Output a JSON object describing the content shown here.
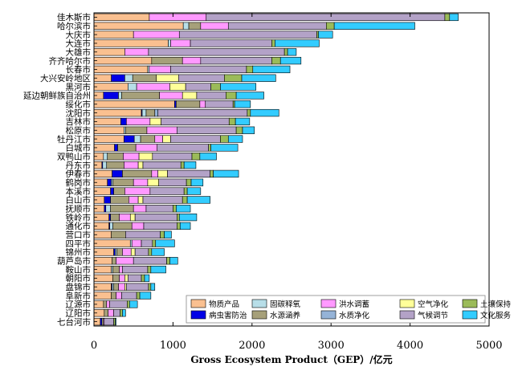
{
  "chart_data": {
    "type": "bar",
    "orientation": "horizontal",
    "stacked": true,
    "xlabel": "Gross Ecosystem Product（GEP）/亿元",
    "ylabel": "",
    "xlim": [
      0,
      5000
    ],
    "xticks": [
      0,
      1000,
      2000,
      3000,
      4000,
      5000
    ],
    "grid": false,
    "legend_position": "bottom-right",
    "categories": [
      "佳木斯市",
      "哈尔滨市",
      "大庆市",
      "大连市",
      "大雄市",
      "齐齐哈尔市",
      "长春市",
      "大兴安岭地区",
      "黑河市",
      "延边朝鲜族自治州",
      "绥化市",
      "沈阳市",
      "吉林市",
      "松原市",
      "牡丹江市",
      "白城市",
      "双鸭山市",
      "丹东市",
      "伊春市",
      "鹤岗市",
      "本溪市",
      "白山市",
      "抚顺市",
      "铁岭市",
      "通化市",
      "营口市",
      "四平市",
      "锦州市",
      "葫芦岛市",
      "鞍山市",
      "朝阳市",
      "盘锦市",
      "阜新市",
      "辽源市",
      "辽阳市",
      "七台河市"
    ],
    "series": [
      {
        "name": "物质产品",
        "color": "#FAC090",
        "values": [
          700,
          1130,
          500,
          940,
          390,
          730,
          680,
          220,
          430,
          120,
          1020,
          600,
          340,
          380,
          380,
          260,
          120,
          100,
          230,
          170,
          210,
          130,
          130,
          190,
          190,
          220,
          460,
          250,
          230,
          220,
          240,
          220,
          220,
          120,
          130,
          80
        ]
      },
      {
        "name": "病虫害防治",
        "color": "#0000E6",
        "values": [
          0,
          0,
          0,
          0,
          0,
          0,
          0,
          170,
          0,
          190,
          20,
          10,
          70,
          0,
          130,
          40,
          0,
          10,
          130,
          50,
          40,
          80,
          20,
          20,
          10,
          0,
          0,
          20,
          0,
          0,
          0,
          10,
          0,
          0,
          0,
          20
        ]
      },
      {
        "name": "固碳释氧",
        "color": "#B7DEE8",
        "values": [
          0,
          70,
          0,
          30,
          0,
          0,
          20,
          100,
          110,
          40,
          0,
          50,
          0,
          20,
          80,
          0,
          50,
          50,
          0,
          20,
          0,
          0,
          60,
          0,
          40,
          0,
          20,
          20,
          0,
          20,
          0,
          20,
          0,
          0,
          0,
          0
        ]
      },
      {
        "name": "水源涵养",
        "color": "#A6A07A",
        "values": [
          0,
          150,
          0,
          0,
          0,
          390,
          0,
          300,
          0,
          480,
          300,
          110,
          0,
          270,
          180,
          230,
          200,
          220,
          370,
          260,
          140,
          230,
          290,
          110,
          240,
          180,
          0,
          70,
          50,
          80,
          80,
          60,
          60,
          40,
          50,
          20
        ]
      },
      {
        "name": "洪水调蓄",
        "color": "#FF99FF",
        "values": [
          720,
          350,
          580,
          250,
          300,
          230,
          270,
          0,
          420,
          290,
          70,
          0,
          300,
          380,
          100,
          270,
          200,
          180,
          80,
          180,
          320,
          120,
          160,
          140,
          150,
          0,
          120,
          110,
          220,
          40,
          70,
          80,
          70,
          40,
          70,
          10
        ]
      },
      {
        "name": "水质净化",
        "color": "#95B3D7",
        "values": [
          0,
          0,
          0,
          0,
          0,
          0,
          0,
          0,
          0,
          0,
          0,
          40,
          0,
          0,
          0,
          0,
          0,
          0,
          0,
          0,
          0,
          0,
          0,
          0,
          0,
          0,
          0,
          0,
          0,
          0,
          0,
          0,
          0,
          0,
          0,
          0
        ]
      },
      {
        "name": "空气净化",
        "color": "#FFFF99",
        "values": [
          0,
          0,
          0,
          0,
          0,
          0,
          0,
          280,
          200,
          180,
          0,
          0,
          140,
          0,
          100,
          0,
          170,
          60,
          120,
          140,
          0,
          60,
          0,
          60,
          0,
          0,
          0,
          50,
          0,
          0,
          40,
          20,
          0,
          0,
          0,
          0
        ]
      },
      {
        "name": "气候调节",
        "color": "#B3A2C7",
        "values": [
          3020,
          1240,
          1740,
          1030,
          1720,
          900,
          960,
          580,
          320,
          370,
          350,
          1130,
          860,
          750,
          630,
          650,
          500,
          480,
          540,
          350,
          430,
          500,
          340,
          530,
          420,
          440,
          140,
          170,
          420,
          320,
          170,
          280,
          190,
          220,
          80,
          120
        ]
      },
      {
        "name": "土壤保持",
        "color": "#9BBB59",
        "values": [
          60,
          100,
          20,
          40,
          40,
          110,
          80,
          220,
          120,
          130,
          20,
          40,
          80,
          80,
          100,
          30,
          100,
          40,
          40,
          60,
          40,
          60,
          40,
          30,
          40,
          50,
          40,
          40,
          40,
          40,
          40,
          30,
          40,
          30,
          30,
          20
        ]
      },
      {
        "name": "文化服务",
        "color": "#33CCFF",
        "values": [
          110,
          1020,
          180,
          560,
          110,
          260,
          470,
          430,
          450,
          350,
          200,
          360,
          180,
          150,
          180,
          340,
          210,
          150,
          320,
          150,
          170,
          290,
          180,
          220,
          130,
          90,
          240,
          160,
          100,
          190,
          60,
          50,
          140,
          100,
          40,
          10
        ]
      }
    ]
  },
  "legend": {
    "entries": [
      {
        "name": "物质产品",
        "color": "#FAC090"
      },
      {
        "name": "病虫害防治",
        "color": "#0000E6"
      },
      {
        "name": "固碳释氧",
        "color": "#B7DEE8"
      },
      {
        "name": "水源涵养",
        "color": "#A6A07A"
      },
      {
        "name": "洪水调蓄",
        "color": "#FF99FF"
      },
      {
        "name": "水质净化",
        "color": "#95B3D7"
      },
      {
        "name": "空气净化",
        "color": "#FFFF99"
      },
      {
        "name": "气候调节",
        "color": "#B3A2C7"
      },
      {
        "name": "土壤保持",
        "color": "#9BBB59"
      },
      {
        "name": "文化服务",
        "color": "#33CCFF"
      }
    ]
  }
}
